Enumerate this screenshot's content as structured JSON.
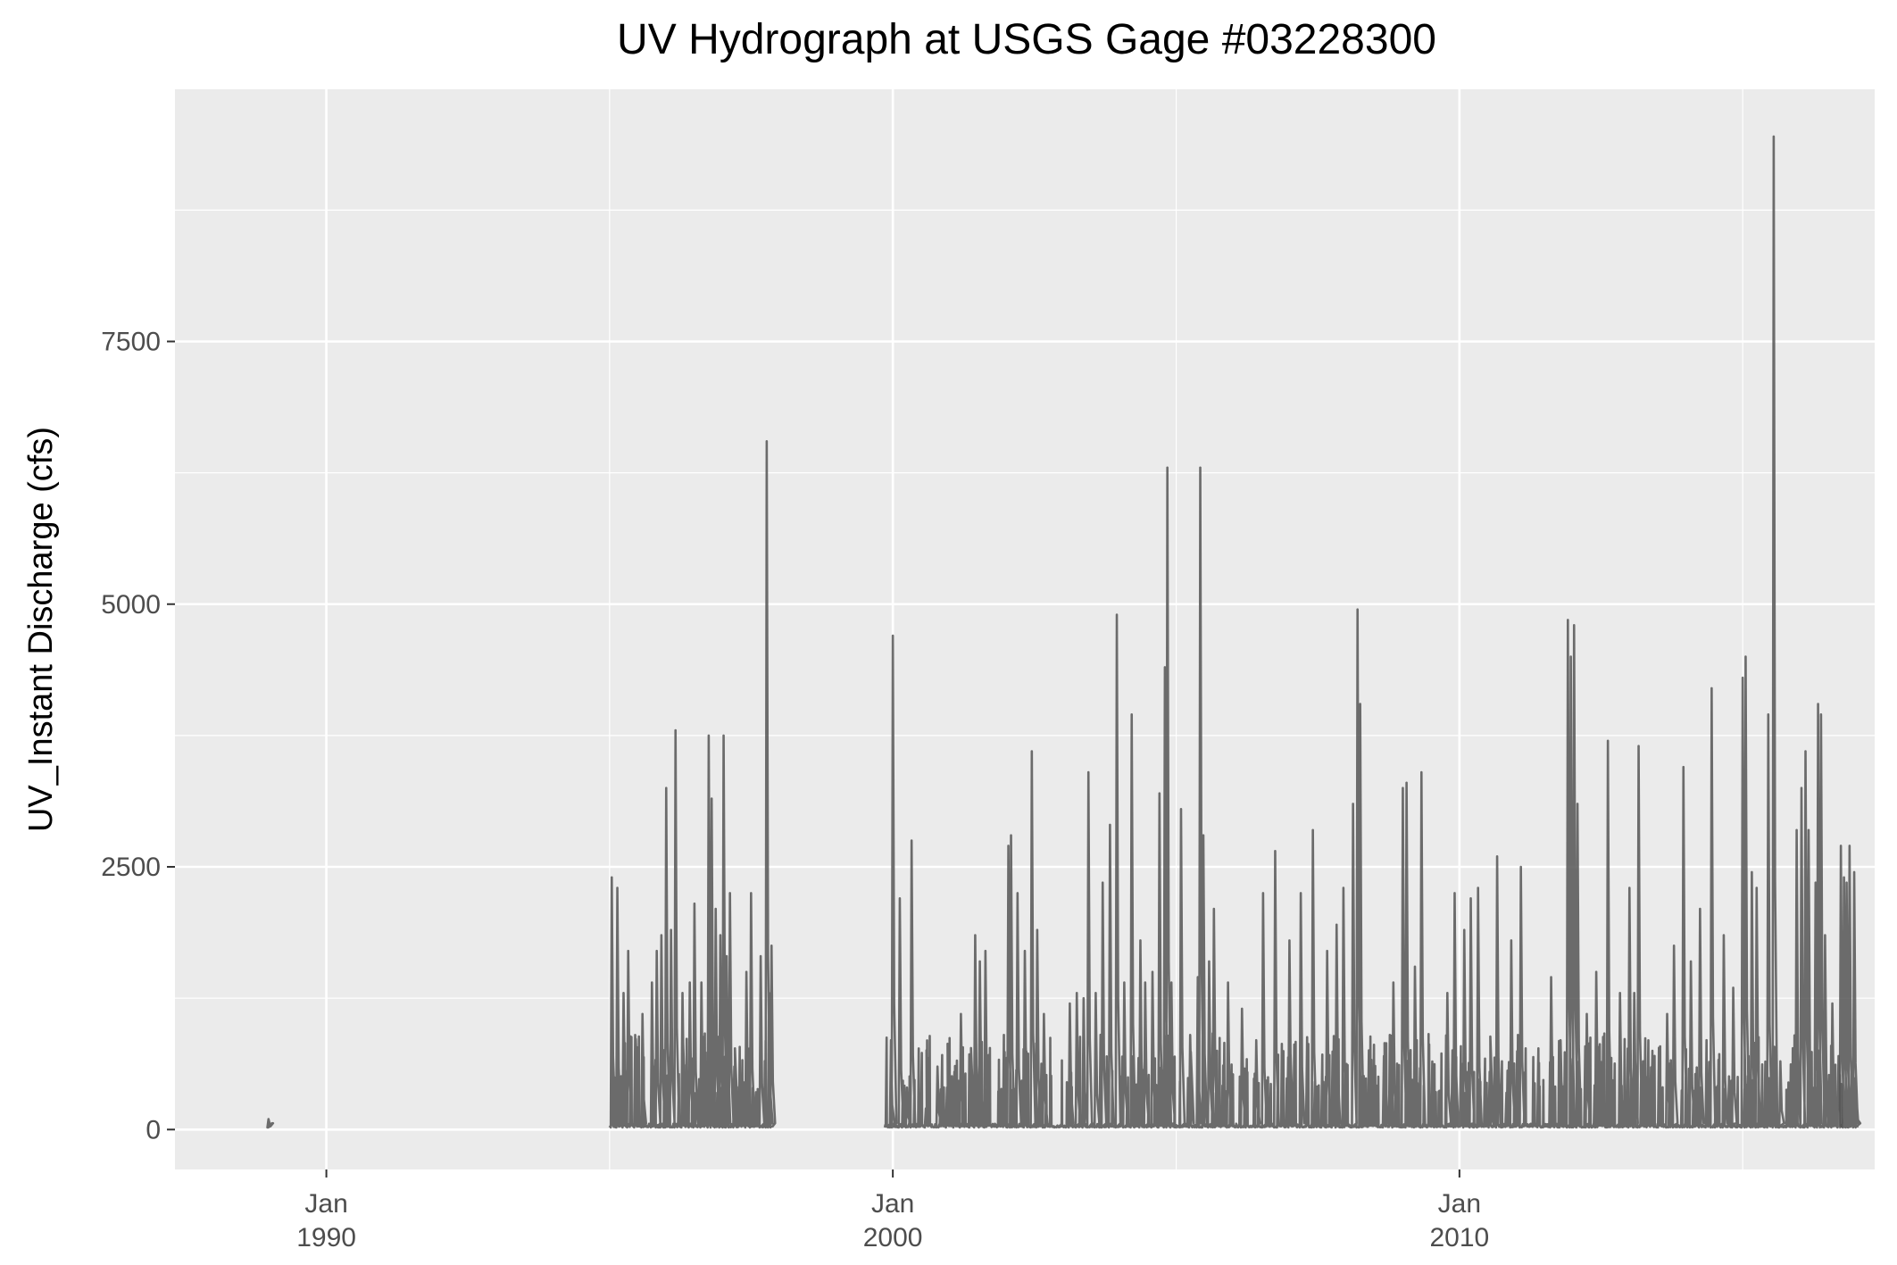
{
  "chart_data": {
    "type": "line",
    "title": "UV Hydrograph at USGS Gage #03228300",
    "xlabel": "",
    "ylabel": "UV_Instant Discharge (cfs)",
    "x_range": [
      "1987-05-01",
      "2017-05-01"
    ],
    "ylim": [
      -380,
      9900
    ],
    "y_ticks": [
      0,
      2500,
      5000,
      7500
    ],
    "y_tick_labels": [
      "0",
      "2500",
      "5000",
      "7500"
    ],
    "x_ticks": [
      {
        "date": "1990-01-01",
        "label": "Jan\n1990"
      },
      {
        "date": "2000-01-01",
        "label": "Jan\n2000"
      },
      {
        "date": "2010-01-01",
        "label": "Jan\n2010"
      }
    ],
    "grid": true,
    "legend": "none",
    "colors": {
      "panel": "#ebebeb",
      "grid": "#ffffff",
      "line": "#555555",
      "tick_text": "#4d4d4d"
    },
    "series": [
      {
        "baseline": 20,
        "segments": [
          {
            "start": "1988-12-20",
            "end": "1989-01-05",
            "peaks": [
              [
                "1988-12-24",
                100
              ],
              [
                "1988-12-30",
                60
              ]
            ]
          },
          {
            "start": "1995-01-01",
            "end": "1997-11-15",
            "peaks": [
              [
                "1995-01-15",
                2400
              ],
              [
                "1995-02-20",
                2300
              ],
              [
                "1995-04-01",
                1300
              ],
              [
                "1995-05-01",
                1700
              ],
              [
                "1995-06-15",
                900
              ],
              [
                "1995-08-01",
                1100
              ],
              [
                "1995-10-01",
                1400
              ],
              [
                "1995-11-01",
                1700
              ],
              [
                "1995-12-01",
                1850
              ],
              [
                "1996-01-01",
                3250
              ],
              [
                "1996-02-01",
                1900
              ],
              [
                "1996-03-01",
                3800
              ],
              [
                "1996-04-15",
                1300
              ],
              [
                "1996-06-01",
                1400
              ],
              [
                "1996-07-01",
                2150
              ],
              [
                "1996-08-15",
                1400
              ],
              [
                "1996-10-01",
                3750
              ],
              [
                "1996-10-20",
                3150
              ],
              [
                "1996-11-15",
                2100
              ],
              [
                "1996-12-15",
                1850
              ],
              [
                "1997-01-05",
                3750
              ],
              [
                "1997-01-25",
                1650
              ],
              [
                "1997-02-15",
                2250
              ],
              [
                "1997-03-15",
                600
              ],
              [
                "1997-06-01",
                1500
              ],
              [
                "1997-07-01",
                2250
              ],
              [
                "1997-09-01",
                1650
              ],
              [
                "1997-10-10",
                6550
              ],
              [
                "1997-10-25",
                1300
              ],
              [
                "1997-11-10",
                1750
              ]
            ]
          },
          {
            "start": "1999-11-10",
            "end": "2016-10-01",
            "peaks": [
              [
                "1999-12-20",
                850
              ],
              [
                "2000-01-01",
                4700
              ],
              [
                "2000-02-15",
                2200
              ],
              [
                "2000-04-01",
                400
              ],
              [
                "2000-05-01",
                2750
              ],
              [
                "2000-08-01",
                200
              ],
              [
                "2000-10-15",
                600
              ],
              [
                "2000-12-15",
                400
              ],
              [
                "2001-02-01",
                550
              ],
              [
                "2001-03-15",
                1100
              ],
              [
                "2001-05-15",
                400
              ],
              [
                "2001-06-15",
                1850
              ],
              [
                "2001-07-15",
                1600
              ],
              [
                "2001-08-20",
                1700
              ],
              [
                "2002-01-15",
                2700
              ],
              [
                "2002-02-01",
                2800
              ],
              [
                "2002-03-15",
                2250
              ],
              [
                "2002-05-01",
                1700
              ],
              [
                "2002-06-15",
                3600
              ],
              [
                "2002-07-20",
                1900
              ],
              [
                "2002-09-01",
                1100
              ],
              [
                "2003-02-15",
                1200
              ],
              [
                "2003-04-01",
                1300
              ],
              [
                "2003-05-15",
                1250
              ],
              [
                "2003-06-15",
                3400
              ],
              [
                "2003-08-01",
                1300
              ],
              [
                "2003-09-15",
                2350
              ],
              [
                "2003-11-01",
                2900
              ],
              [
                "2003-12-15",
                4900
              ],
              [
                "2004-02-01",
                1400
              ],
              [
                "2004-03-20",
                3950
              ],
              [
                "2004-05-15",
                1800
              ],
              [
                "2004-06-15",
                1400
              ],
              [
                "2004-08-01",
                1500
              ],
              [
                "2004-09-15",
                3200
              ],
              [
                "2004-10-20",
                4400
              ],
              [
                "2004-11-05",
                6300
              ],
              [
                "2004-12-01",
                1400
              ],
              [
                "2005-02-01",
                3050
              ],
              [
                "2005-04-01",
                900
              ],
              [
                "2005-05-20",
                1450
              ],
              [
                "2005-06-05",
                6300
              ],
              [
                "2005-06-25",
                2800
              ],
              [
                "2005-08-01",
                1600
              ],
              [
                "2005-09-01",
                2100
              ],
              [
                "2005-12-01",
                1400
              ],
              [
                "2006-03-01",
                1150
              ],
              [
                "2006-06-01",
                850
              ],
              [
                "2006-07-15",
                2250
              ],
              [
                "2006-10-01",
                2650
              ],
              [
                "2007-01-01",
                1800
              ],
              [
                "2007-03-15",
                2250
              ],
              [
                "2007-06-01",
                2850
              ],
              [
                "2007-09-01",
                1700
              ],
              [
                "2007-11-01",
                1950
              ],
              [
                "2007-12-15",
                2300
              ],
              [
                "2008-02-15",
                3100
              ],
              [
                "2008-03-15",
                4950
              ],
              [
                "2008-04-01",
                4050
              ],
              [
                "2008-09-01",
                700
              ],
              [
                "2008-11-01",
                1400
              ],
              [
                "2009-01-01",
                3250
              ],
              [
                "2009-01-25",
                3300
              ],
              [
                "2009-03-20",
                1550
              ],
              [
                "2009-05-01",
                3400
              ],
              [
                "2009-10-15",
                1300
              ],
              [
                "2009-12-01",
                2250
              ],
              [
                "2010-02-01",
                1900
              ],
              [
                "2010-03-15",
                2200
              ],
              [
                "2010-05-01",
                2300
              ],
              [
                "2010-07-15",
                550
              ],
              [
                "2010-09-01",
                2600
              ],
              [
                "2010-12-01",
                1800
              ],
              [
                "2011-02-01",
                2500
              ],
              [
                "2011-08-15",
                1450
              ],
              [
                "2011-10-15",
                850
              ],
              [
                "2011-12-01",
                4850
              ],
              [
                "2011-12-20",
                4500
              ],
              [
                "2012-01-10",
                4800
              ],
              [
                "2012-02-01",
                3100
              ],
              [
                "2012-04-01",
                1100
              ],
              [
                "2012-06-01",
                1500
              ],
              [
                "2012-08-15",
                3700
              ],
              [
                "2012-11-01",
                1300
              ],
              [
                "2013-01-01",
                2300
              ],
              [
                "2013-02-01",
                1300
              ],
              [
                "2013-03-01",
                3650
              ],
              [
                "2013-09-01",
                1100
              ],
              [
                "2013-10-15",
                1750
              ],
              [
                "2013-12-15",
                3450
              ],
              [
                "2014-02-01",
                1600
              ],
              [
                "2014-04-01",
                2100
              ],
              [
                "2014-06-15",
                4200
              ],
              [
                "2014-09-01",
                1850
              ],
              [
                "2014-11-01",
                1350
              ],
              [
                "2015-01-01",
                4300
              ],
              [
                "2015-01-20",
                4500
              ],
              [
                "2015-03-01",
                2450
              ],
              [
                "2015-04-01",
                2300
              ],
              [
                "2015-06-15",
                3950
              ],
              [
                "2015-07-20",
                9450
              ],
              [
                "2015-09-01",
                650
              ],
              [
                "2015-12-15",
                2850
              ],
              [
                "2016-01-15",
                3250
              ],
              [
                "2016-02-10",
                3600
              ],
              [
                "2016-03-01",
                2850
              ],
              [
                "2016-04-15",
                2350
              ],
              [
                "2016-05-01",
                4050
              ],
              [
                "2016-05-20",
                3950
              ],
              [
                "2016-06-15",
                1850
              ],
              [
                "2016-08-01",
                1200
              ],
              [
                "2016-09-10",
                700
              ]
            ]
          },
          {
            "start": "2016-09-15",
            "end": "2017-01-10",
            "peaks": [
              [
                "2016-09-25",
                2700
              ],
              [
                "2016-10-15",
                2400
              ],
              [
                "2016-11-01",
                2350
              ],
              [
                "2016-11-20",
                2700
              ],
              [
                "2016-12-20",
                2450
              ],
              [
                "2017-01-05",
                280
              ]
            ]
          }
        ]
      }
    ]
  }
}
